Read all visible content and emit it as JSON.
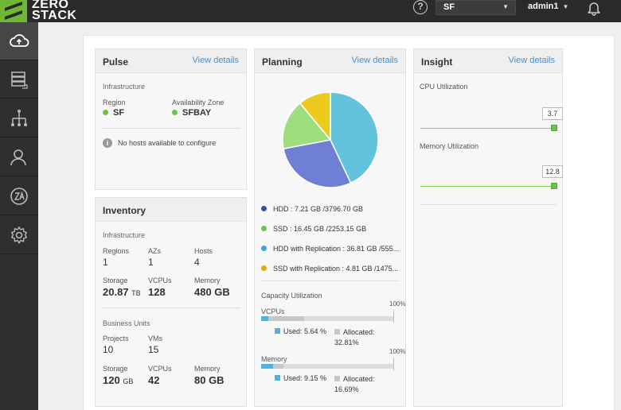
{
  "brand": {
    "line1": "ZERO",
    "line2": "STACK",
    "color": "#6fb836"
  },
  "header": {
    "help_label": "?",
    "region_value": "SF",
    "user_name": "admin1"
  },
  "sidebar": {
    "items": [
      {
        "icon": "cloud-upload-icon",
        "active": true
      },
      {
        "icon": "database-icon"
      },
      {
        "icon": "network-tree-icon"
      },
      {
        "icon": "users-icon"
      },
      {
        "icon": "za-logo-icon"
      },
      {
        "icon": "gear-icon"
      }
    ]
  },
  "pulse": {
    "title": "Pulse",
    "link": "View details",
    "section": "Infrastructure",
    "region_label": "Region",
    "region_value": "SF",
    "az_label": "Availability Zone",
    "az_value": "SFBAY",
    "notice": "No hosts available to configure"
  },
  "inventory": {
    "title": "Inventory",
    "infra_section": "Infrastructure",
    "regions_label": "Regions",
    "regions_value": "1",
    "azs_label": "AZs",
    "azs_value": "1",
    "hosts_label": "Hosts",
    "hosts_value": "4",
    "storage_label": "Storage",
    "storage_value": "20.87",
    "storage_unit": "TB",
    "vcpus_label": "VCPUs",
    "vcpus_value": "128",
    "memory_label": "Memory",
    "memory_value": "480 GB",
    "bu_section": "Business Units",
    "projects_label": "Projects",
    "projects_value": "10",
    "vms_label": "VMs",
    "vms_value": "15",
    "bu_storage_label": "Storage",
    "bu_storage_value": "120",
    "bu_storage_unit": "GB",
    "bu_vcpus_label": "VCPUs",
    "bu_vcpus_value": "42",
    "bu_memory_label": "Memory",
    "bu_memory_value": "80 GB"
  },
  "planning": {
    "title": "Planning",
    "link": "View details",
    "legend": [
      {
        "text": "HDD : 7.21 GB /3796.70 GB",
        "color": "#3e4d9c"
      },
      {
        "text": "SSD : 16.45 GB /2253.15 GB",
        "color": "#6cc24a"
      },
      {
        "text": "HDD with Replication : 36.81 GB /555...",
        "color": "#3aa7d6"
      },
      {
        "text": "SSD with Replication : 4.81 GB /1475...",
        "color": "#e0a81c"
      }
    ],
    "capacity_title": "Capacity Utilization",
    "vcpus": {
      "label": "VCPUs",
      "max_label": "100%",
      "used_pct": 5.64,
      "allocated_pct": 32.81,
      "used_text": "Used: 5.64 %",
      "allocated_label": "Allocated:",
      "allocated_text": "32.81%"
    },
    "memory": {
      "label": "Memory",
      "max_label": "100%",
      "used_pct": 9.15,
      "allocated_pct": 16.69,
      "used_text": "Used: 9.15 %",
      "allocated_label": "Allocated:",
      "allocated_text": "16.69%"
    }
  },
  "chart_data": {
    "type": "pie",
    "slices": [
      {
        "color": "#63c3dc",
        "value": 43
      },
      {
        "color": "#6f7fd3",
        "value": 29
      },
      {
        "color": "#9fde7f",
        "value": 17
      },
      {
        "color": "#eccb1e",
        "value": 11
      }
    ]
  },
  "insight": {
    "title": "Insight",
    "link": "View details",
    "cpu_label": "CPU Utilization",
    "cpu_value": "3.7",
    "memory_label": "Memory Utilization",
    "memory_value": "12.8"
  }
}
